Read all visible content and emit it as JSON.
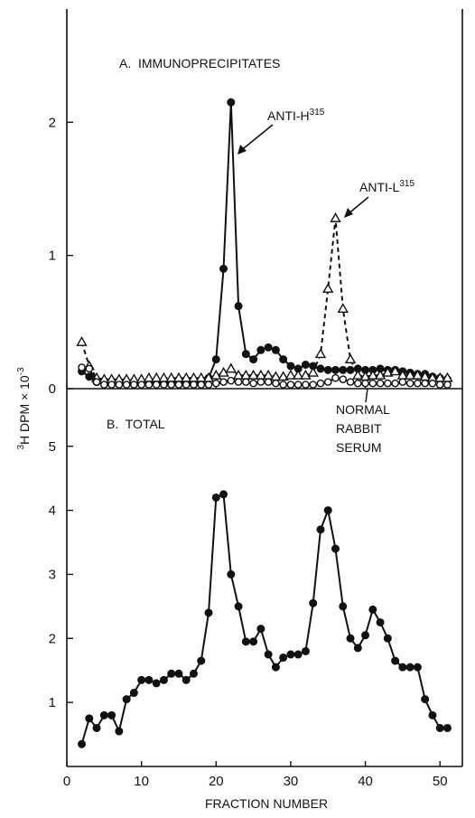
{
  "chart_data": [
    {
      "panel": "A",
      "type": "line",
      "title": "A.  IMMUNOPRECIPITATES",
      "ylim": [
        0,
        2.85
      ],
      "yticks": [
        0,
        1,
        2
      ],
      "series": [
        {
          "name": "ANTI-H315",
          "marker": "filled-circle",
          "line": "solid",
          "x": [
            2,
            3,
            4,
            5,
            6,
            7,
            8,
            9,
            10,
            11,
            12,
            13,
            14,
            15,
            16,
            17,
            18,
            19,
            20,
            21,
            22,
            23,
            24,
            25,
            26,
            27,
            28,
            29,
            30,
            31,
            32,
            33,
            34,
            35,
            36,
            37,
            38,
            39,
            40,
            41,
            42,
            43,
            44,
            45,
            46,
            47,
            48,
            49,
            50,
            51
          ],
          "values": [
            0.13,
            0.09,
            0.05,
            0.05,
            0.05,
            0.05,
            0.05,
            0.05,
            0.05,
            0.05,
            0.05,
            0.05,
            0.05,
            0.05,
            0.05,
            0.05,
            0.05,
            0.08,
            0.22,
            0.9,
            2.15,
            0.62,
            0.26,
            0.22,
            0.29,
            0.31,
            0.29,
            0.22,
            0.17,
            0.15,
            0.18,
            0.17,
            0.15,
            0.14,
            0.14,
            0.14,
            0.14,
            0.15,
            0.14,
            0.14,
            0.15,
            0.14,
            0.14,
            0.13,
            0.12,
            0.11,
            0.11,
            0.09,
            0.08,
            0.07
          ]
        },
        {
          "name": "ANTI-L315",
          "marker": "open-triangle",
          "line": "dashed",
          "x": [
            2,
            3,
            4,
            5,
            6,
            7,
            8,
            9,
            10,
            11,
            12,
            13,
            14,
            15,
            16,
            17,
            18,
            19,
            20,
            21,
            22,
            23,
            24,
            25,
            26,
            27,
            28,
            29,
            30,
            31,
            32,
            33,
            34,
            35,
            36,
            37,
            38,
            39,
            40,
            41,
            42,
            43,
            44,
            45,
            46,
            47,
            48,
            49,
            50,
            51
          ],
          "values": [
            0.35,
            0.17,
            0.08,
            0.07,
            0.07,
            0.07,
            0.07,
            0.07,
            0.07,
            0.08,
            0.08,
            0.08,
            0.08,
            0.08,
            0.08,
            0.08,
            0.08,
            0.08,
            0.1,
            0.12,
            0.15,
            0.1,
            0.1,
            0.1,
            0.1,
            0.1,
            0.09,
            0.09,
            0.1,
            0.1,
            0.1,
            0.12,
            0.26,
            0.75,
            1.28,
            0.6,
            0.22,
            0.1,
            0.09,
            0.1,
            0.1,
            0.12,
            0.13,
            0.1,
            0.1,
            0.1,
            0.09,
            0.08,
            0.08,
            0.08
          ]
        },
        {
          "name": "NORMAL RABBIT SERUM",
          "marker": "open-circle",
          "line": "solid",
          "x": [
            2,
            3,
            4,
            5,
            6,
            7,
            8,
            9,
            10,
            11,
            12,
            13,
            14,
            15,
            16,
            17,
            18,
            19,
            20,
            21,
            22,
            23,
            24,
            25,
            26,
            27,
            28,
            29,
            30,
            31,
            32,
            33,
            34,
            35,
            36,
            37,
            38,
            39,
            40,
            41,
            42,
            43,
            44,
            45,
            46,
            47,
            48,
            49,
            50,
            51
          ],
          "values": [
            0.16,
            0.15,
            0.05,
            0.03,
            0.03,
            0.03,
            0.03,
            0.03,
            0.03,
            0.03,
            0.03,
            0.03,
            0.03,
            0.03,
            0.03,
            0.03,
            0.03,
            0.03,
            0.04,
            0.05,
            0.06,
            0.05,
            0.05,
            0.04,
            0.05,
            0.05,
            0.04,
            0.03,
            0.03,
            0.03,
            0.03,
            0.03,
            0.04,
            0.05,
            0.08,
            0.07,
            0.05,
            0.04,
            0.04,
            0.04,
            0.04,
            0.04,
            0.04,
            0.05,
            0.04,
            0.04,
            0.04,
            0.04,
            0.03,
            0.03
          ]
        }
      ],
      "annotations": [
        "ANTI-H315",
        "ANTI-L315",
        "NORMAL RABBIT SERUM"
      ]
    },
    {
      "panel": "B",
      "type": "line",
      "title": "B.  TOTAL",
      "ylim": [
        0,
        5.9
      ],
      "yticks": [
        1,
        2,
        3,
        4,
        5
      ],
      "series": [
        {
          "name": "TOTAL",
          "marker": "filled-circle",
          "line": "solid",
          "x": [
            2,
            3,
            4,
            5,
            6,
            7,
            8,
            9,
            10,
            11,
            12,
            13,
            14,
            15,
            16,
            17,
            18,
            19,
            20,
            21,
            22,
            23,
            24,
            25,
            26,
            27,
            28,
            29,
            30,
            31,
            32,
            33,
            34,
            35,
            36,
            37,
            38,
            39,
            40,
            41,
            42,
            43,
            44,
            45,
            46,
            47,
            48,
            49,
            50,
            51
          ],
          "values": [
            0.35,
            0.75,
            0.6,
            0.8,
            0.8,
            0.55,
            1.05,
            1.15,
            1.35,
            1.35,
            1.3,
            1.35,
            1.45,
            1.45,
            1.35,
            1.45,
            1.65,
            2.4,
            4.2,
            4.25,
            3.0,
            2.5,
            1.95,
            1.95,
            2.15,
            1.75,
            1.55,
            1.7,
            1.75,
            1.75,
            1.8,
            2.55,
            3.7,
            4.0,
            3.4,
            2.5,
            2.0,
            1.85,
            2.05,
            2.45,
            2.25,
            2.0,
            1.65,
            1.55,
            1.55,
            1.55,
            1.05,
            0.8,
            0.6,
            0.6
          ]
        }
      ]
    }
  ],
  "axes": {
    "ylabel": "³H DPM × 10⁻³",
    "xlabel": "FRACTION NUMBER",
    "xlim": [
      0,
      53
    ],
    "xticks": [
      0,
      10,
      20,
      30,
      40,
      50
    ]
  },
  "labels": {
    "title_a": "A.  IMMUNOPRECIPITATES",
    "title_b": "B.  TOTAL",
    "anti_h": "ANTI-H",
    "anti_h_sup": "315",
    "anti_l": "ANTI-L",
    "anti_l_sup": "315",
    "nrs_1": "NORMAL",
    "nrs_2": "RABBIT",
    "nrs_3": "SERUM",
    "ylabel_main": "H DPM × 10",
    "ylabel_sup_pre": "3",
    "ylabel_sup_post": "-3",
    "xlabel": "FRACTION NUMBER"
  }
}
